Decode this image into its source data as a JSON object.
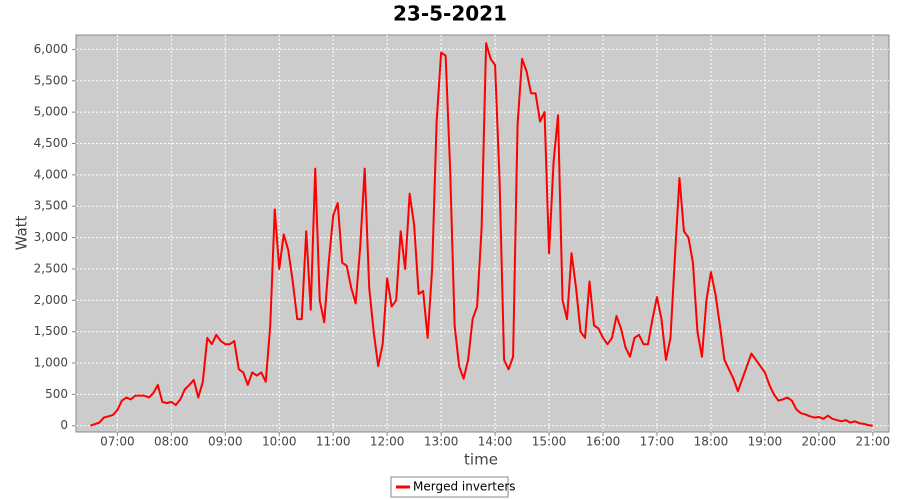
{
  "chart_data": {
    "type": "line",
    "title": "23-5-2021",
    "x_label": "time",
    "y_label": "Watt",
    "xlim": [
      "06:14",
      "21:18"
    ],
    "xticks": [
      "07:00",
      "08:00",
      "09:00",
      "10:00",
      "11:00",
      "12:00",
      "13:00",
      "14:00",
      "15:00",
      "16:00",
      "17:00",
      "18:00",
      "19:00",
      "20:00",
      "21:00"
    ],
    "ylim": [
      -100,
      6230
    ],
    "yticks": [
      0,
      500,
      {
        "value": 1000,
        "label": "1,000"
      },
      {
        "value": 1500,
        "label": "1,500"
      },
      {
        "value": 2000,
        "label": "2,000"
      },
      {
        "value": 2500,
        "label": "2,500"
      },
      {
        "value": 3000,
        "label": "3,000"
      },
      {
        "value": 3500,
        "label": "3,500"
      },
      {
        "value": 4000,
        "label": "4,000"
      },
      {
        "value": 4500,
        "label": "4,500"
      },
      {
        "value": 5000,
        "label": "5,000"
      },
      {
        "value": 5500,
        "label": "5,500"
      },
      {
        "value": 6000,
        "label": "6,000"
      }
    ],
    "grid": true,
    "legend": "bottom",
    "background": "#cccccc",
    "x": [
      "06:30",
      "06:40",
      "06:45",
      "06:55",
      "07:00",
      "07:05",
      "07:10",
      "07:15",
      "07:20",
      "07:30",
      "07:35",
      "07:40",
      "07:45",
      "07:50",
      "07:55",
      "08:00",
      "08:05",
      "08:10",
      "08:15",
      "08:20",
      "08:25",
      "08:30",
      "08:35",
      "08:40",
      "08:45",
      "08:50",
      "08:55",
      "09:00",
      "09:05",
      "09:10",
      "09:15",
      "09:20",
      "09:25",
      "09:30",
      "09:35",
      "09:40",
      "09:45",
      "09:50",
      "09:55",
      "10:00",
      "10:05",
      "10:10",
      "10:15",
      "10:20",
      "10:25",
      "10:30",
      "10:35",
      "10:40",
      "10:45",
      "10:50",
      "10:55",
      "11:00",
      "11:05",
      "11:10",
      "11:15",
      "11:20",
      "11:25",
      "11:30",
      "11:35",
      "11:40",
      "11:45",
      "11:50",
      "11:55",
      "12:00",
      "12:05",
      "12:10",
      "12:15",
      "12:20",
      "12:25",
      "12:30",
      "12:35",
      "12:40",
      "12:45",
      "12:50",
      "12:55",
      "13:00",
      "13:05",
      "13:10",
      "13:15",
      "13:20",
      "13:25",
      "13:30",
      "13:35",
      "13:40",
      "13:45",
      "13:50",
      "13:55",
      "14:00",
      "14:05",
      "14:10",
      "14:15",
      "14:20",
      "14:25",
      "14:30",
      "14:35",
      "14:40",
      "14:45",
      "14:50",
      "14:55",
      "15:00",
      "15:05",
      "15:10",
      "15:15",
      "15:20",
      "15:25",
      "15:30",
      "15:35",
      "15:40",
      "15:45",
      "15:50",
      "15:55",
      "16:00",
      "16:05",
      "16:10",
      "16:15",
      "16:20",
      "16:25",
      "16:30",
      "16:35",
      "16:40",
      "16:45",
      "16:50",
      "16:55",
      "17:00",
      "17:05",
      "17:10",
      "17:15",
      "17:20",
      "17:25",
      "17:30",
      "17:35",
      "17:40",
      "17:45",
      "17:50",
      "17:55",
      "18:00",
      "18:05",
      "18:10",
      "18:15",
      "18:20",
      "18:25",
      "18:30",
      "18:35",
      "18:40",
      "18:45",
      "18:50",
      "18:55",
      "19:00",
      "19:05",
      "19:10",
      "19:15",
      "19:20",
      "19:25",
      "19:30",
      "19:35",
      "19:40",
      "19:45",
      "19:50",
      "19:55",
      "20:00",
      "20:05",
      "20:10",
      "20:15",
      "20:20",
      "20:25",
      "20:30",
      "20:35",
      "20:40",
      "20:45",
      "20:50",
      "20:55",
      "21:00"
    ],
    "series": [
      {
        "name": "Merged inverters",
        "color": "#ff0000",
        "values": [
          0,
          50,
          130,
          170,
          250,
          400,
          450,
          420,
          480,
          480,
          450,
          520,
          650,
          380,
          360,
          380,
          330,
          420,
          580,
          650,
          730,
          450,
          700,
          1400,
          1300,
          1450,
          1350,
          1300,
          1300,
          1350,
          900,
          850,
          650,
          850,
          800,
          850,
          700,
          1600,
          3450,
          2500,
          3050,
          2800,
          2300,
          1700,
          1700,
          3100,
          1850,
          4100,
          2000,
          1650,
          2600,
          3350,
          3550,
          2600,
          2550,
          2200,
          1950,
          2850,
          4100,
          2200,
          1500,
          950,
          1300,
          2350,
          1900,
          2000,
          3100,
          2500,
          3700,
          3200,
          2100,
          2150,
          1400,
          2500,
          4850,
          5950,
          5900,
          4100,
          1600,
          950,
          750,
          1050,
          1700,
          1900,
          3150,
          6100,
          5850,
          5750,
          3900,
          1050,
          900,
          1100,
          4800,
          5850,
          5650,
          5300,
          5300,
          4850,
          5000,
          2750,
          4200,
          4950,
          2000,
          1700,
          2750,
          2200,
          1500,
          1400,
          2300,
          1600,
          1550,
          1400,
          1300,
          1400,
          1750,
          1550,
          1250,
          1100,
          1400,
          1450,
          1300,
          1300,
          1700,
          2050,
          1700,
          1050,
          1400,
          2700,
          3950,
          3100,
          3000,
          2600,
          1500,
          1100,
          2000,
          2450,
          2100,
          1600,
          1050,
          900,
          750,
          550,
          750,
          950,
          1150,
          1050,
          950,
          850,
          650,
          500,
          400,
          420,
          450,
          400,
          260,
          200,
          180,
          150,
          130,
          140,
          110,
          160,
          110,
          90,
          70,
          90,
          50,
          70,
          40,
          30,
          10,
          0
        ]
      }
    ]
  }
}
